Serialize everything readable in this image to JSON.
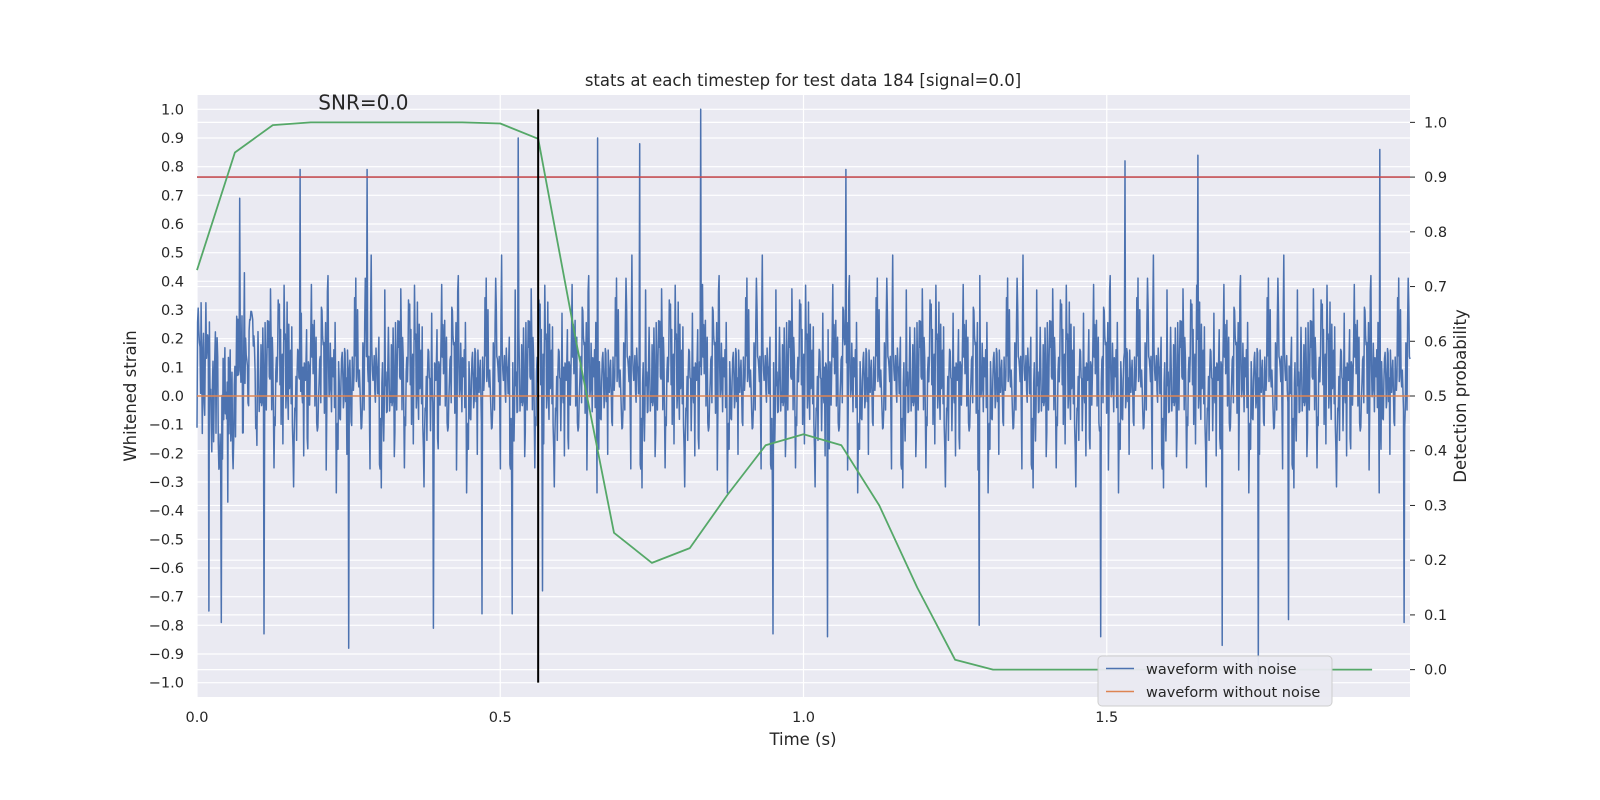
{
  "chart_data": {
    "type": "line",
    "title": "stats at each timestep for test data 184 [signal=0.0]",
    "xlabel": "Time (s)",
    "ylabel_left": "Whitened strain",
    "ylabel_right": "Detection probability",
    "xlim": [
      0.0,
      2.0
    ],
    "ylim_left": [
      -1.05,
      1.05
    ],
    "ylim_right": [
      -0.05,
      1.05
    ],
    "x_ticks": [
      0.0,
      0.5,
      1.0,
      1.5
    ],
    "x_tick_labels": [
      "0.0",
      "0.5",
      "1.0",
      "1.5"
    ],
    "y_left_ticks": [
      -1.0,
      -0.9,
      -0.8,
      -0.7,
      -0.6,
      -0.5,
      -0.4,
      -0.3,
      -0.2,
      -0.1,
      0.0,
      0.1,
      0.2,
      0.3,
      0.4,
      0.5,
      0.6,
      0.7,
      0.8,
      0.9,
      1.0
    ],
    "y_left_tick_labels": [
      "−1.0",
      "−0.9",
      "−0.8",
      "−0.7",
      "−0.6",
      "−0.5",
      "−0.4",
      "−0.3",
      "−0.2",
      "−0.1",
      "0.0",
      "0.1",
      "0.2",
      "0.3",
      "0.4",
      "0.5",
      "0.6",
      "0.7",
      "0.8",
      "0.9",
      "1.0"
    ],
    "y_right_ticks": [
      0.0,
      0.1,
      0.2,
      0.3,
      0.4,
      0.5,
      0.6,
      0.7,
      0.8,
      0.9,
      1.0
    ],
    "y_right_tick_labels": [
      "0.0",
      "0.1",
      "0.2",
      "0.3",
      "0.4",
      "0.5",
      "0.6",
      "0.7",
      "0.8",
      "0.9",
      "1.0"
    ],
    "annotation": "SNR=0.0",
    "annotation_at": {
      "x": 0.2,
      "y": 1.0
    },
    "series": [
      {
        "name": "waveform with noise",
        "axis": "left",
        "color": "#4c72b0",
        "kind": "noise",
        "t_start": 0.0,
        "t_end": 2.0,
        "samples": 2048,
        "typical_range": [
          -0.5,
          0.5
        ],
        "extremes": [
          -0.95,
          1.0
        ],
        "spikes": [
          {
            "x": 0.02,
            "y": -0.75
          },
          {
            "x": 0.04,
            "y": -0.79
          },
          {
            "x": 0.07,
            "y": 0.69
          },
          {
            "x": 0.11,
            "y": -0.83
          },
          {
            "x": 0.17,
            "y": 0.79
          },
          {
            "x": 0.25,
            "y": -0.88
          },
          {
            "x": 0.28,
            "y": 0.79
          },
          {
            "x": 0.39,
            "y": -0.81
          },
          {
            "x": 0.47,
            "y": -0.76
          },
          {
            "x": 0.53,
            "y": 0.9
          },
          {
            "x": 0.52,
            "y": -0.76
          },
          {
            "x": 0.57,
            "y": -0.68
          },
          {
            "x": 0.66,
            "y": 0.9
          },
          {
            "x": 0.73,
            "y": 0.88
          },
          {
            "x": 0.83,
            "y": 1.0
          },
          {
            "x": 0.95,
            "y": -0.83
          },
          {
            "x": 1.04,
            "y": -0.84
          },
          {
            "x": 1.07,
            "y": 0.79
          },
          {
            "x": 1.29,
            "y": -0.8
          },
          {
            "x": 1.49,
            "y": -0.84
          },
          {
            "x": 1.53,
            "y": 0.82
          },
          {
            "x": 1.65,
            "y": 0.84
          },
          {
            "x": 1.69,
            "y": -0.87
          },
          {
            "x": 1.75,
            "y": -0.95
          },
          {
            "x": 1.8,
            "y": -0.78
          },
          {
            "x": 1.95,
            "y": 0.86
          },
          {
            "x": 1.99,
            "y": -0.79
          }
        ]
      },
      {
        "name": "waveform without noise",
        "axis": "left",
        "color": "#dd8452",
        "kind": "constant",
        "value": 0.0
      },
      {
        "name": "detection probability",
        "axis": "right",
        "color": "#55a868",
        "kind": "line",
        "x": [
          0.0,
          0.0625,
          0.125,
          0.1875,
          0.25,
          0.3125,
          0.375,
          0.4375,
          0.5,
          0.5625,
          0.625,
          0.6875,
          0.75,
          0.8125,
          0.875,
          0.9375,
          1.0,
          1.0625,
          1.125,
          1.1875,
          1.25,
          1.3125,
          1.375,
          1.4375,
          1.5,
          1.5625,
          1.625,
          1.6875,
          1.75,
          1.8125,
          1.875,
          1.9375
        ],
        "y": [
          0.73,
          0.945,
          0.995,
          1.0,
          1.0,
          1.0,
          1.0,
          1.0,
          0.998,
          0.97,
          0.6,
          0.25,
          0.195,
          0.222,
          0.32,
          0.41,
          0.43,
          0.41,
          0.3,
          0.15,
          0.018,
          0.0,
          0.0,
          0.0,
          0.0,
          0.0,
          0.0,
          0.0,
          0.0,
          0.0,
          0.0,
          0.0
        ]
      }
    ],
    "threshold": {
      "axis": "right",
      "value": 0.9,
      "color": "#c44e52"
    },
    "marker_line": {
      "axis": "left",
      "x": 0.5625,
      "y_from": -1.0,
      "y_to": 1.0,
      "color": "#000000"
    },
    "legend": {
      "position": "lower-right",
      "entries": [
        {
          "label": "waveform with noise",
          "color": "#4c72b0"
        },
        {
          "label": "waveform without noise",
          "color": "#dd8452"
        }
      ]
    },
    "style": {
      "background": "#eaeaf2",
      "grid": true,
      "grid_color": "#ffffff"
    }
  }
}
